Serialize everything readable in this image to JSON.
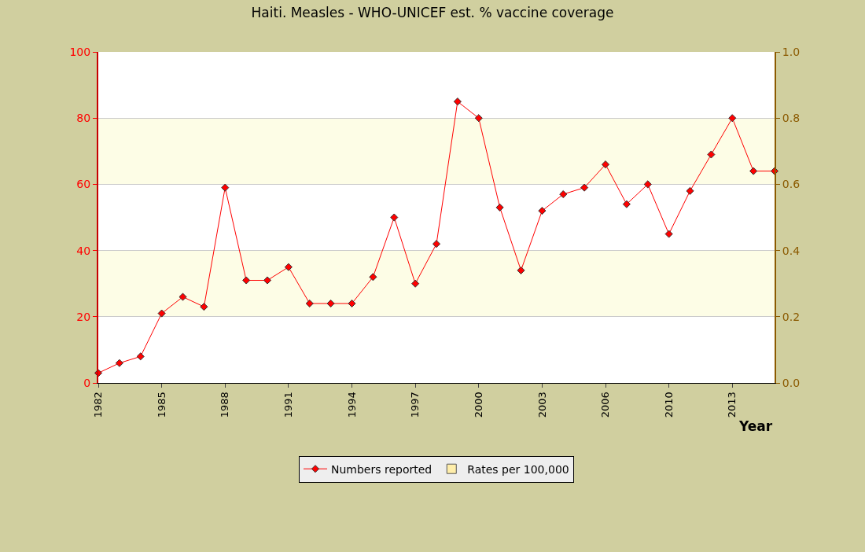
{
  "chart_data": {
    "type": "line",
    "title": "Haiti. Measles - WHO-UNICEF est. % vaccine coverage",
    "xlabel": "Year",
    "categories": [
      "1982",
      null,
      null,
      "1985",
      null,
      null,
      "1988",
      null,
      null,
      "1991",
      null,
      null,
      "1994",
      null,
      null,
      "1997",
      null,
      null,
      "2000",
      null,
      null,
      "2003",
      null,
      null,
      "2006",
      null,
      null,
      "2010",
      null,
      null,
      "2013",
      null,
      null
    ],
    "series": [
      {
        "name": "Numbers reported",
        "color": "#ff0000",
        "marker": "diamond",
        "values": [
          3,
          6,
          8,
          21,
          26,
          23,
          59,
          31,
          31,
          35,
          24,
          24,
          24,
          32,
          50,
          30,
          42,
          85,
          80,
          53,
          34,
          52,
          57,
          59,
          66,
          54,
          60,
          45,
          58,
          69,
          80,
          64,
          64
        ]
      },
      {
        "name": "Rates per 100,000",
        "type": "bar",
        "axis": "y2",
        "color": "#ffeeaa",
        "values": [
          null,
          null,
          null,
          null,
          null,
          null,
          null,
          null,
          null,
          null,
          null,
          null,
          null,
          null,
          null,
          null,
          null,
          null,
          null,
          null,
          null,
          null,
          null,
          null,
          null,
          null,
          null,
          null,
          null,
          null,
          null,
          null,
          null
        ]
      }
    ],
    "ylim": [
      0,
      100
    ],
    "yticks": [
      0,
      20,
      40,
      60,
      80,
      100
    ],
    "y2lim": [
      0,
      1
    ],
    "y2ticks": [
      {
        "value": 0,
        "label": "0.0"
      },
      {
        "value": 0.2,
        "label": "0.2"
      },
      {
        "value": 0.4,
        "label": "0.4"
      },
      {
        "value": 0.6,
        "label": "0.6"
      },
      {
        "value": 0.8,
        "label": "0.8"
      },
      {
        "value": 1,
        "label": "1.0"
      }
    ],
    "bands": [
      {
        "axis": "y",
        "from": 20,
        "to": 40,
        "color": "#fdfde6"
      },
      {
        "axis": "y",
        "from": 60,
        "to": 80,
        "color": "#fdfde6"
      }
    ],
    "grid": "y",
    "legend": "bottom"
  }
}
